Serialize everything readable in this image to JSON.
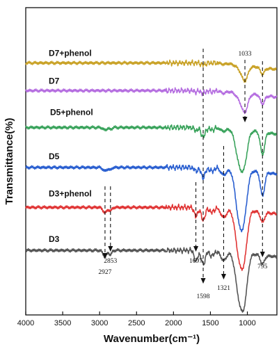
{
  "chart_data": {
    "type": "line",
    "xlabel": "Wavenumber(cm⁻¹)",
    "ylabel": "Transmittance(%)",
    "xlim": [
      4000,
      600
    ],
    "x_ticks": [
      4000,
      3500,
      3000,
      2500,
      2000,
      1500,
      1000
    ],
    "y_tick_labels": false,
    "grid": false,
    "legend": "labels placed on each curve",
    "series": [
      {
        "name": "D7+phenol",
        "color": "#c9a227",
        "offset": 0.0
      },
      {
        "name": "D7",
        "color": "#b56ee0",
        "offset": 0.09
      },
      {
        "name": "D5+phenol",
        "color": "#3aa35c",
        "offset": 0.21
      },
      {
        "name": "D5",
        "color": "#2a5fd0",
        "offset": 0.34
      },
      {
        "name": "D3+phenol",
        "color": "#e03535",
        "offset": 0.47
      },
      {
        "name": "D3",
        "color": "#555555",
        "offset": 0.61
      }
    ],
    "annotations": [
      {
        "label": "2927",
        "x": 2927
      },
      {
        "label": "2853",
        "x": 2853
      },
      {
        "label": "1697",
        "x": 1697
      },
      {
        "label": "1598",
        "x": 1598
      },
      {
        "label": "1321",
        "x": 1321
      },
      {
        "label": "1033",
        "x": 1033
      },
      {
        "label": "795",
        "x": 795
      }
    ]
  }
}
